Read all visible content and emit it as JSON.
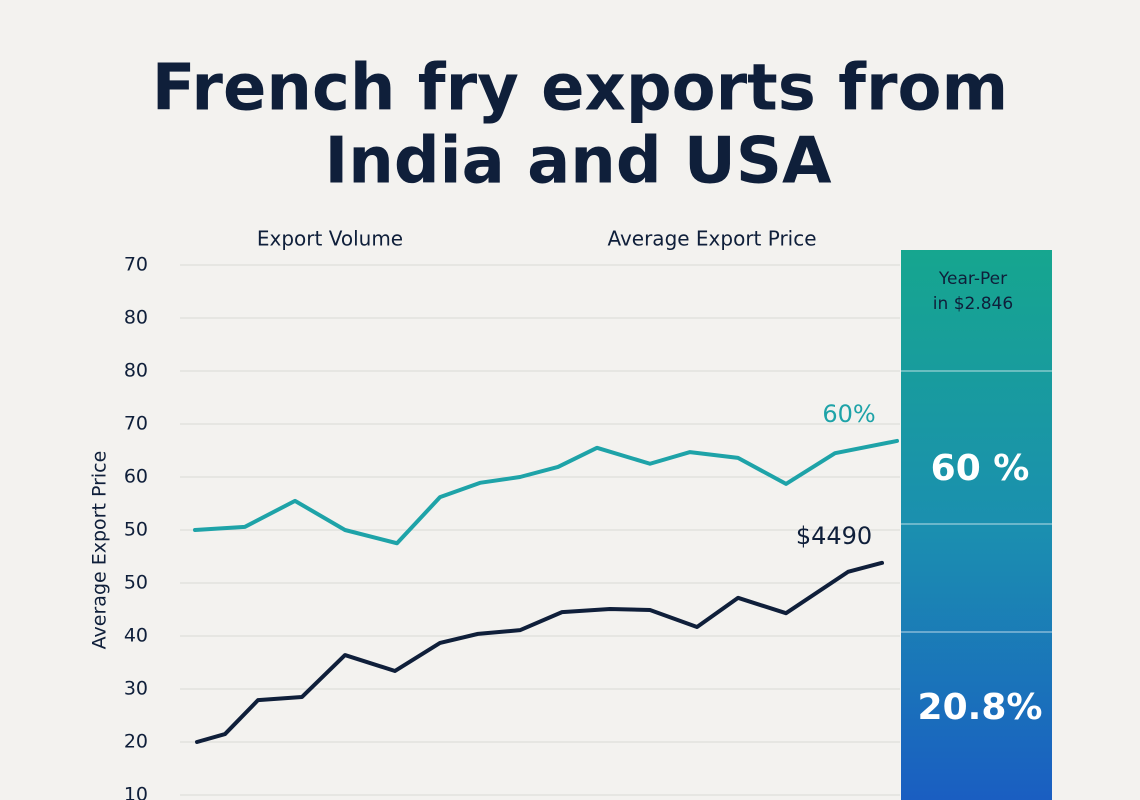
{
  "chart_data": {
    "type": "line",
    "title": [
      "French fry exports from",
      "India and USA"
    ],
    "y_label": "Average Export Price",
    "xlim": [
      0,
      720
    ],
    "ylim": [
      10,
      110
    ],
    "yticks": [
      10,
      20,
      30,
      40,
      50,
      {
        "value": 60,
        "label": "50"
      },
      {
        "value": 70,
        "label": "60"
      },
      {
        "value": 80,
        "label": "70"
      },
      {
        "value": 90,
        "label": "80"
      },
      {
        "value": 100,
        "label": "80"
      },
      {
        "value": 110,
        "label": "70"
      }
    ],
    "grid": true,
    "series": [
      {
        "name": "Average Export Price",
        "color": "#1ea3a8",
        "end_label": "60%",
        "x": [
          15,
          65,
          115,
          165,
          217,
          260,
          300,
          340,
          378,
          417,
          470,
          510,
          558,
          606,
          655,
          717
        ],
        "values": [
          60,
          60.6,
          65.5,
          60,
          57.5,
          66.2,
          68.9,
          70,
          71.9,
          75.5,
          72.5,
          74.7,
          73.6,
          68.7,
          74.5,
          76.8
        ]
      },
      {
        "name": "Export Volume",
        "color": "#0f1f3a",
        "end_label": "$4490",
        "x": [
          17,
          45,
          78,
          122,
          165,
          215,
          260,
          298,
          340,
          382,
          430,
          470,
          517,
          558,
          606,
          668,
          702
        ],
        "values": [
          20,
          21.5,
          27.9,
          28.5,
          36.4,
          33.4,
          38.7,
          40.4,
          41.1,
          44.5,
          45.1,
          44.9,
          41.7,
          47.2,
          44.3,
          52.1,
          53.8
        ]
      }
    ],
    "side_panel": {
      "heading": [
        "Year-Per",
        "in $2.846"
      ],
      "stats": [
        "60 %",
        "20.8%"
      ]
    }
  }
}
